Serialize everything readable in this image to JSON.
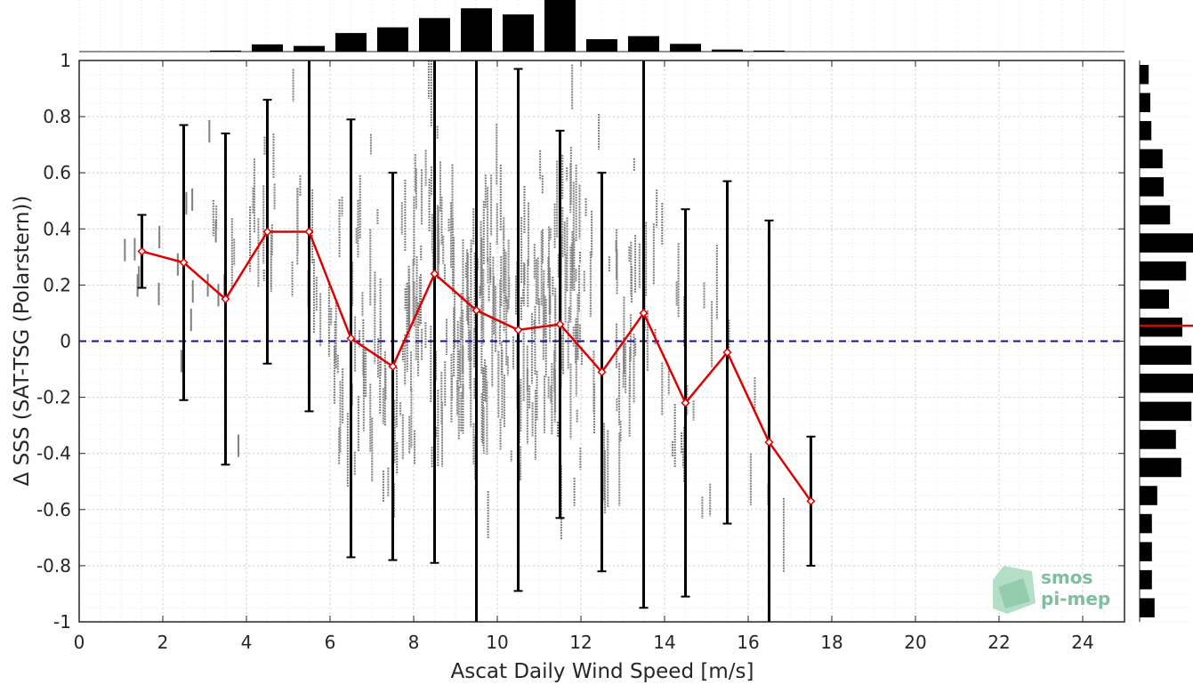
{
  "chart_data": {
    "type": "scatter",
    "xlabel": "Ascat Daily Wind Speed [m/s]",
    "ylabel": "Δ SSS (SAT-TSG (Polarstern))",
    "xlim": [
      0,
      25
    ],
    "ylim": [
      -1,
      1
    ],
    "xticks": [
      0,
      2,
      4,
      6,
      8,
      10,
      12,
      14,
      16,
      18,
      20,
      22,
      24
    ],
    "yticks": [
      -1,
      -0.8,
      -0.6,
      -0.4,
      -0.2,
      0,
      0.2,
      0.4,
      0.6,
      0.8,
      1
    ],
    "grid": true,
    "zero_line": 0,
    "binned_mean": {
      "color": "#e00000",
      "x": [
        1.5,
        2.5,
        3.5,
        4.5,
        5.5,
        6.5,
        7.5,
        8.5,
        9.5,
        10.5,
        11.5,
        12.5,
        13.5,
        14.5,
        15.5,
        16.5,
        17.5
      ],
      "mean": [
        0.32,
        0.28,
        0.15,
        0.39,
        0.39,
        0.01,
        -0.09,
        0.24,
        0.11,
        0.04,
        0.06,
        -0.11,
        0.1,
        -0.22,
        -0.04,
        -0.36,
        -0.57
      ],
      "std": [
        0.13,
        0.49,
        0.59,
        0.47,
        0.64,
        0.78,
        0.69,
        1.03,
        1.35,
        0.93,
        0.69,
        0.71,
        1.05,
        0.69,
        0.61,
        0.79,
        0.23
      ]
    },
    "scatter_color": "#808080",
    "top_histogram": {
      "x": [
        3.5,
        4.5,
        5.5,
        6.5,
        7.5,
        8.5,
        9.5,
        10.5,
        11.5,
        12.5,
        13.5,
        14.5,
        15.5,
        16.5
      ],
      "relative_counts": [
        0.02,
        0.14,
        0.11,
        0.36,
        0.47,
        0.65,
        0.84,
        0.72,
        1.0,
        0.24,
        0.3,
        0.15,
        0.04,
        0.02
      ]
    },
    "right_histogram": {
      "y": [
        0.95,
        0.85,
        0.75,
        0.65,
        0.55,
        0.45,
        0.35,
        0.25,
        0.15,
        0.05,
        -0.05,
        -0.15,
        -0.25,
        -0.35,
        -0.45,
        -0.55,
        -0.65,
        -0.75,
        -0.85,
        -0.95
      ],
      "relative_counts": [
        0.17,
        0.2,
        0.22,
        0.43,
        0.45,
        0.57,
        1.0,
        0.87,
        0.55,
        0.8,
        0.97,
        1.0,
        0.97,
        0.68,
        0.78,
        0.33,
        0.23,
        0.23,
        0.23,
        0.28
      ],
      "median_line": 0.055,
      "median_color": "#e00000"
    }
  },
  "logo": {
    "line1": "smos",
    "line2": "pi-mep"
  }
}
